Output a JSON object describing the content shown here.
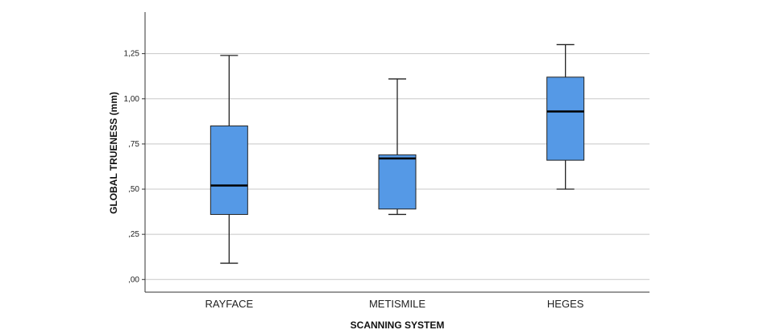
{
  "chart_data": {
    "type": "boxplot",
    "xlabel": "SCANNING SYSTEM",
    "ylabel": "GLOBAL TRUENESS (mm)",
    "ylim": [
      -0.07,
      1.48
    ],
    "yticks": [
      {
        "value": 0.0,
        "label": ",00"
      },
      {
        "value": 0.25,
        "label": ",25"
      },
      {
        "value": 0.5,
        "label": ",50"
      },
      {
        "value": 0.75,
        "label": ",75"
      },
      {
        "value": 1.0,
        "label": "1,00"
      },
      {
        "value": 1.25,
        "label": "1,25"
      }
    ],
    "grid": true,
    "legend": "none",
    "box_color": "#5599e6",
    "categories": [
      "RAYFACE",
      "METISMILE",
      "HEGES"
    ],
    "boxes": [
      {
        "category": "RAYFACE",
        "min": 0.09,
        "q1": 0.36,
        "median": 0.52,
        "q3": 0.85,
        "max": 1.24
      },
      {
        "category": "METISMILE",
        "min": 0.36,
        "q1": 0.39,
        "median": 0.67,
        "q3": 0.69,
        "max": 1.11
      },
      {
        "category": "HEGES",
        "min": 0.5,
        "q1": 0.66,
        "median": 0.93,
        "q3": 1.12,
        "max": 1.3
      }
    ]
  }
}
